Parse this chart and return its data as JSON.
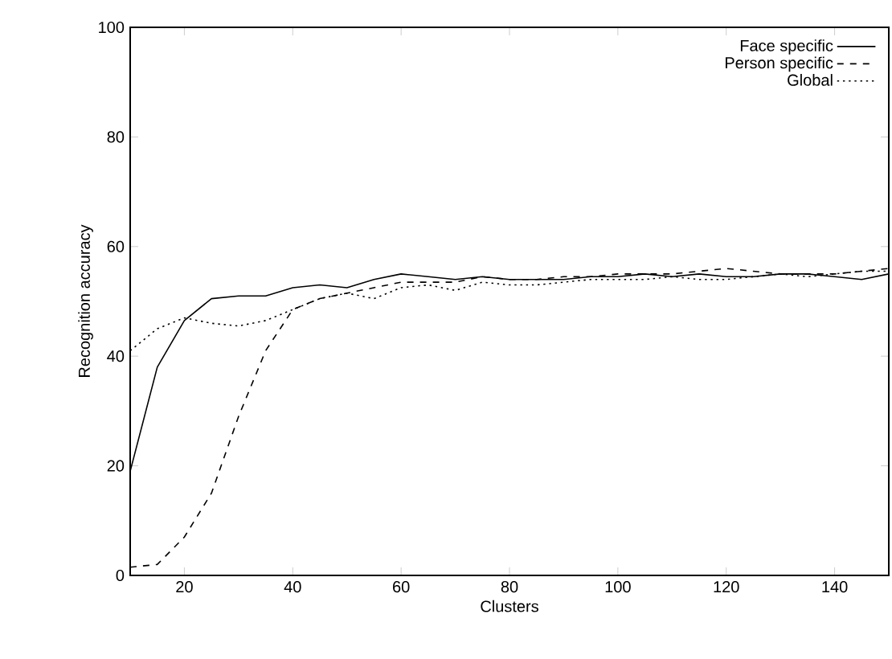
{
  "chart_data": {
    "type": "line",
    "xlabel": "Clusters",
    "ylabel": "Recognition accuracy",
    "x": [
      10,
      15,
      20,
      25,
      30,
      35,
      40,
      45,
      50,
      55,
      60,
      65,
      70,
      75,
      80,
      85,
      90,
      95,
      100,
      105,
      110,
      115,
      120,
      125,
      130,
      135,
      140,
      145,
      150
    ],
    "xlim": [
      10,
      150
    ],
    "ylim": [
      0,
      100
    ],
    "xticks": [
      20,
      40,
      60,
      80,
      100,
      120,
      140
    ],
    "yticks": [
      0,
      20,
      40,
      60,
      80,
      100
    ],
    "legend": "top right",
    "grid": false,
    "marker": "none",
    "series": [
      {
        "name": "Face specific",
        "color": "#000000",
        "line_style": "solid",
        "values": [
          19,
          38,
          46.5,
          50.5,
          51,
          51,
          52.5,
          53,
          52.5,
          54,
          55,
          54.5,
          54,
          54.5,
          54,
          54,
          54,
          54.5,
          54.5,
          55,
          54.5,
          55,
          54.5,
          54.5,
          55,
          55,
          54.5,
          54,
          55
        ]
      },
      {
        "name": "Person specific",
        "color": "#000000",
        "line_style": "dashed",
        "values": [
          1.5,
          2,
          7,
          15,
          29,
          41,
          48.5,
          50.5,
          51.5,
          52.5,
          53.5,
          53.5,
          53.5,
          54.5,
          54,
          54,
          54.5,
          54.5,
          55,
          55,
          55,
          55.5,
          56,
          55.5,
          55,
          55,
          55,
          55.5,
          56
        ]
      },
      {
        "name": "Global",
        "color": "#000000",
        "line_style": "dotted",
        "values": [
          41,
          45,
          47,
          46,
          45.5,
          46.5,
          48.5,
          50.5,
          51.5,
          50.5,
          52.5,
          53,
          52,
          53.5,
          53,
          53,
          53.5,
          54,
          54,
          54,
          54.5,
          54,
          54,
          54.5,
          55,
          54.5,
          55,
          55.5,
          55.5
        ]
      }
    ]
  }
}
